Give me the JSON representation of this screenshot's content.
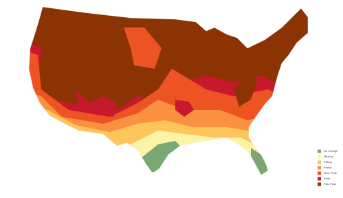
{
  "legend": {
    "items": [
      {
        "label": "No Change",
        "color": "#7aa874"
      },
      {
        "label": "Minimal",
        "color": "#fbf3a6"
      },
      {
        "label": "Patchy",
        "color": "#fdc55a"
      },
      {
        "label": "Partial",
        "color": "#fb9140"
      },
      {
        "label": "Near Peak",
        "color": "#ee5324"
      },
      {
        "label": "Peak",
        "color": "#c8182c"
      },
      {
        "label": "Past Peak",
        "color": "#8c3304"
      }
    ]
  }
}
